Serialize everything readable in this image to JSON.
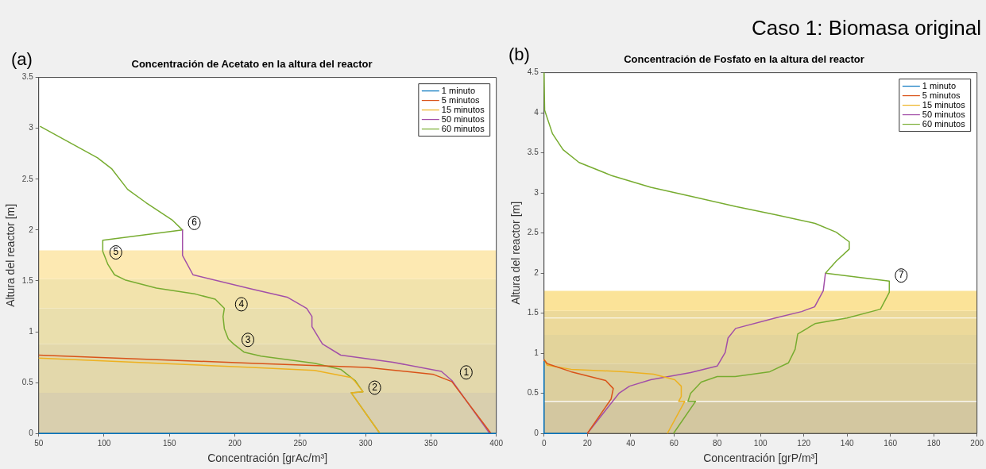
{
  "chart_data": [
    {
      "type": "line",
      "title": "Concentración de Acetato en la altura del reactor",
      "xlabel": "Concentración [grAc/m³]",
      "ylabel": "Altura del reactor [m]",
      "xlim": [
        50,
        400
      ],
      "xticks": [
        50,
        100,
        150,
        200,
        250,
        300,
        350,
        400
      ],
      "ylim": [
        0,
        3.5
      ],
      "yticks": [
        0,
        0.5,
        1,
        1.5,
        2,
        2.5,
        3,
        3.5
      ],
      "legend": "top right",
      "series": [
        {
          "name": "1 minuto",
          "color": "#0072bd",
          "x": [
            50,
            400
          ],
          "values": [
            0,
            0
          ]
        },
        {
          "name": "5 minutos",
          "color": "#d95319",
          "x": [
            50,
            213,
            301,
            352,
            366,
            396
          ],
          "values": [
            0.77,
            0.69,
            0.65,
            0.58,
            0.51,
            0
          ]
        },
        {
          "name": "15 minutos",
          "color": "#edb120",
          "x": [
            50,
            213,
            261,
            289,
            292,
            298,
            289,
            311
          ],
          "values": [
            0.74,
            0.65,
            0.62,
            0.55,
            0.51,
            0.41,
            0.4,
            0
          ]
        },
        {
          "name": "50 minutos",
          "color": "#a24fa8",
          "x": [
            160,
            160,
            168,
            213,
            240,
            255,
            259,
            259,
            267,
            281,
            321,
            358,
            366,
            395
          ],
          "values": [
            2.0,
            1.75,
            1.56,
            1.42,
            1.34,
            1.23,
            1.15,
            1.05,
            0.88,
            0.77,
            0.7,
            0.61,
            0.52,
            0
          ]
        },
        {
          "name": "60 minutos",
          "color": "#77ac30",
          "x": [
            51,
            95,
            106,
            118,
            132,
            152,
            160,
            99,
            99,
            103,
            108,
            116,
            140,
            170,
            185,
            192,
            191,
            192,
            195,
            199,
            207,
            220,
            261,
            281,
            292,
            298,
            289,
            311,
            396
          ],
          "values": [
            3.02,
            2.71,
            2.6,
            2.4,
            2.27,
            2.1,
            2.0,
            1.9,
            1.79,
            1.66,
            1.56,
            1.51,
            1.43,
            1.37,
            1.32,
            1.23,
            1.15,
            1.03,
            0.93,
            0.88,
            0.8,
            0.76,
            0.69,
            0.63,
            0.52,
            0.41,
            0.4,
            0,
            0
          ]
        }
      ],
      "bands": [
        {
          "axis": "y",
          "from": 0,
          "to": 0.4,
          "color": "#d9cfae"
        },
        {
          "axis": "y",
          "from": 0.4,
          "to": 0.88,
          "color": "#e3d8ab"
        },
        {
          "axis": "y",
          "from": 0.88,
          "to": 1.23,
          "color": "#eadfad"
        },
        {
          "axis": "y",
          "from": 1.23,
          "to": 1.52,
          "color": "#f2e3ac"
        },
        {
          "axis": "y",
          "from": 1.52,
          "to": 1.8,
          "color": "#fde9b2"
        }
      ],
      "annotations": [
        "Caso 1: Biomasa original",
        "(a)",
        {
          "text": "1",
          "x": 377,
          "y": 0.6
        },
        {
          "text": "2",
          "x": 307,
          "y": 0.45
        },
        {
          "text": "3",
          "x": 210,
          "y": 0.92
        },
        {
          "text": "4",
          "x": 205,
          "y": 1.27
        },
        {
          "text": "5",
          "x": 109,
          "y": 1.78
        },
        {
          "text": "6",
          "x": 169,
          "y": 2.07
        }
      ]
    },
    {
      "type": "line",
      "title": "Concentración de Fosfato en la altura del reactor",
      "xlabel": "Concentración [grP/m³]",
      "ylabel": "Altura del reactor [m]",
      "xlim": [
        0,
        200
      ],
      "xticks": [
        0,
        20,
        40,
        60,
        80,
        100,
        120,
        140,
        160,
        180,
        200
      ],
      "ylim": [
        0,
        4.5
      ],
      "yticks": [
        0,
        0.5,
        1,
        1.5,
        2,
        2.5,
        3,
        3.5,
        4,
        4.5
      ],
      "legend": "top right",
      "series": [
        {
          "name": "1 minuto",
          "color": "#0072bd",
          "x": [
            20,
            0,
            0
          ],
          "values": [
            0,
            0,
            0.9
          ]
        },
        {
          "name": "5 minutos",
          "color": "#d95319",
          "x": [
            0,
            1.5,
            12.5,
            28.5,
            32,
            31,
            20
          ],
          "values": [
            0.92,
            0.87,
            0.77,
            0.66,
            0.56,
            0.43,
            0
          ]
        },
        {
          "name": "15 minutos",
          "color": "#edb120",
          "x": [
            0,
            1.5,
            12.5,
            37,
            50.6,
            60.4,
            63.4,
            63.4,
            62.2,
            65,
            57
          ],
          "values": [
            0.92,
            0.85,
            0.8,
            0.77,
            0.74,
            0.67,
            0.59,
            0.46,
            0.4,
            0.4,
            0
          ]
        },
        {
          "name": "50 minutos",
          "color": "#a24fa8",
          "x": [
            20,
            34.6,
            39.5,
            49.3,
            67.7,
            80,
            83.7,
            85,
            88.5,
            106.8,
            119,
            125,
            129,
            130
          ],
          "values": [
            0,
            0.5,
            0.59,
            0.67,
            0.76,
            0.84,
            1.01,
            1.19,
            1.31,
            1.44,
            1.52,
            1.58,
            1.78,
            2.0
          ]
        },
        {
          "name": "60 minutos",
          "color": "#77ac30",
          "x": [
            0,
            0.3,
            3.9,
            8.8,
            16.2,
            30.9,
            49.3,
            67.7,
            88.6,
            106.8,
            125.2,
            135,
            141,
            141,
            135,
            130,
            159.5,
            159.5,
            155.4,
            140,
            125.2,
            117.2,
            116,
            112.9,
            104.3,
            88.3,
            80,
            72.6,
            67.7,
            66.5,
            70,
            59.8
          ],
          "values": [
            4.5,
            4.03,
            3.74,
            3.54,
            3.38,
            3.22,
            3.07,
            2.96,
            2.83,
            2.73,
            2.62,
            2.51,
            2.39,
            2.3,
            2.15,
            2.0,
            1.9,
            1.76,
            1.55,
            1.44,
            1.37,
            1.24,
            1.05,
            0.88,
            0.77,
            0.71,
            0.71,
            0.64,
            0.5,
            0.4,
            0.4,
            0
          ]
        }
      ],
      "bands": [
        {
          "axis": "y",
          "from": 0,
          "to": 0.4,
          "color": "#d3c7a0"
        },
        {
          "axis": "y",
          "from": 0.4,
          "to": 0.87,
          "color": "#dccf9e"
        },
        {
          "axis": "y",
          "from": 0.87,
          "to": 1.23,
          "color": "#e3d49b"
        },
        {
          "axis": "y",
          "from": 1.23,
          "to": 1.53,
          "color": "#ecd99a"
        },
        {
          "axis": "y",
          "from": 1.53,
          "to": 1.78,
          "color": "#fbe398"
        }
      ],
      "ref_lines": [
        {
          "axis": "y",
          "value": 0.4,
          "color": "#ffffff"
        },
        {
          "axis": "y",
          "value": 1.44,
          "color": "#ffffff"
        }
      ],
      "annotations": [
        "(b)",
        {
          "text": "7",
          "x": 165,
          "y": 1.97
        }
      ]
    }
  ]
}
